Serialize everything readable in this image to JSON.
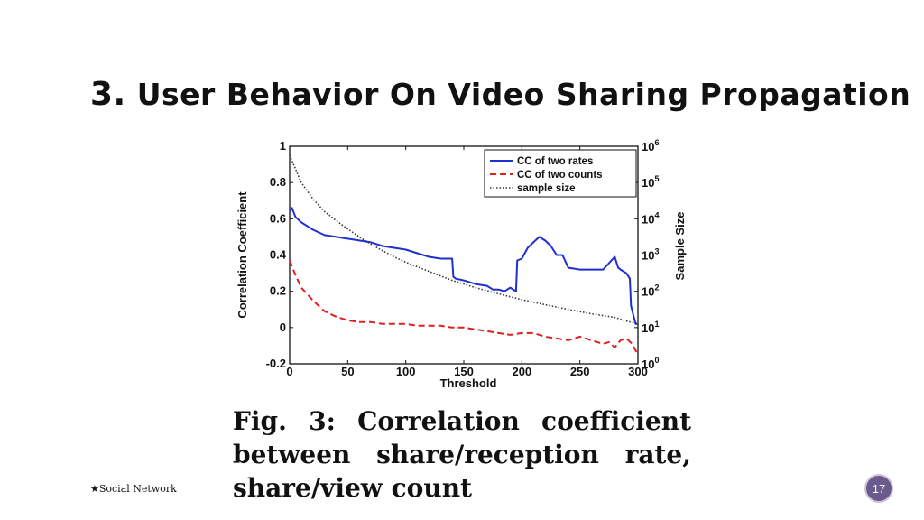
{
  "slide": {
    "title_number": "3.",
    "title_text": "User Behavior On Video Sharing Propagation",
    "caption_lines": [
      "Fig. 3: Correlation coefficient",
      "between share/reception rate,",
      "share/view count"
    ],
    "footer_text": "★Social Network",
    "page_number": "17",
    "badge_color": "#6b5a8c"
  },
  "chart_data": {
    "type": "line",
    "title": "",
    "xlabel": "Threshold",
    "ylabel": "Correlation Coefficient",
    "y2label": "Sample Size",
    "xlim": [
      0,
      300
    ],
    "ylim": [
      -0.2,
      1
    ],
    "y2lim_log10": [
      0,
      6
    ],
    "y2scale": "log",
    "x_ticks": [
      "0",
      "50",
      "100",
      "150",
      "200",
      "250",
      "300"
    ],
    "y_ticks": [
      "-0.2",
      "0",
      "0.2",
      "0.4",
      "0.6",
      "0.8",
      "1"
    ],
    "y2_ticks": [
      "10^0",
      "10^1",
      "10^2",
      "10^3",
      "10^4",
      "10^5",
      "10^6"
    ],
    "legend_position": "top-right",
    "grid": false,
    "series": [
      {
        "name": "CC of two rates",
        "color": "#1f2fd0",
        "style": "solid",
        "axis": "left",
        "x": [
          0,
          2,
          5,
          10,
          20,
          30,
          40,
          50,
          60,
          70,
          80,
          90,
          100,
          110,
          120,
          130,
          140,
          141,
          143,
          150,
          160,
          170,
          175,
          180,
          185,
          190,
          195,
          196,
          200,
          205,
          210,
          215,
          220,
          225,
          230,
          235,
          240,
          250,
          260,
          270,
          280,
          282,
          283,
          285,
          290,
          293,
          294,
          298,
          300
        ],
        "y": [
          0.64,
          0.66,
          0.61,
          0.58,
          0.54,
          0.51,
          0.5,
          0.49,
          0.48,
          0.47,
          0.45,
          0.44,
          0.43,
          0.41,
          0.39,
          0.38,
          0.38,
          0.28,
          0.27,
          0.26,
          0.24,
          0.23,
          0.21,
          0.21,
          0.2,
          0.22,
          0.2,
          0.37,
          0.38,
          0.44,
          0.47,
          0.5,
          0.48,
          0.45,
          0.4,
          0.4,
          0.33,
          0.32,
          0.32,
          0.32,
          0.39,
          0.35,
          0.33,
          0.32,
          0.3,
          0.27,
          0.12,
          0.02,
          0.02
        ]
      },
      {
        "name": "CC of two counts",
        "color": "#e01f1f",
        "style": "dashed",
        "axis": "left",
        "x": [
          0,
          5,
          10,
          20,
          30,
          40,
          50,
          60,
          70,
          80,
          90,
          100,
          110,
          120,
          130,
          140,
          150,
          160,
          170,
          180,
          190,
          200,
          210,
          220,
          230,
          240,
          250,
          260,
          270,
          275,
          280,
          285,
          290,
          295,
          300
        ],
        "y": [
          0.37,
          0.29,
          0.22,
          0.15,
          0.09,
          0.06,
          0.04,
          0.03,
          0.03,
          0.02,
          0.02,
          0.02,
          0.01,
          0.01,
          0.01,
          0.0,
          0.0,
          -0.01,
          -0.02,
          -0.03,
          -0.04,
          -0.03,
          -0.03,
          -0.05,
          -0.06,
          -0.07,
          -0.05,
          -0.07,
          -0.09,
          -0.08,
          -0.11,
          -0.07,
          -0.06,
          -0.09,
          -0.15
        ]
      },
      {
        "name": "sample size",
        "color": "#333333",
        "style": "dotted",
        "axis": "right",
        "x": [
          0,
          10,
          20,
          30,
          40,
          50,
          60,
          70,
          80,
          90,
          100,
          120,
          140,
          160,
          180,
          200,
          220,
          240,
          260,
          280,
          290,
          300
        ],
        "y_log10": [
          5.75,
          5.0,
          4.55,
          4.2,
          3.95,
          3.72,
          3.5,
          3.3,
          3.12,
          2.95,
          2.8,
          2.55,
          2.3,
          2.1,
          1.93,
          1.77,
          1.63,
          1.5,
          1.38,
          1.28,
          1.18,
          1.1
        ]
      }
    ]
  }
}
